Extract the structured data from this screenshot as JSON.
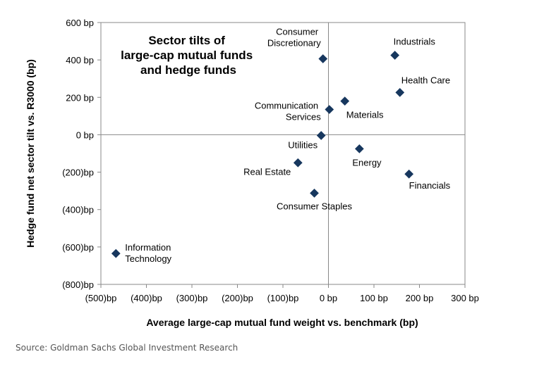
{
  "chart_data": {
    "type": "scatter",
    "title": "Sector tilts of large-cap mutual funds and hedge funds",
    "x_label": "Average large-cap mutual fund weight vs. benchmark (bp)",
    "y_label": "Hedge fund net sector tilt vs. R3000 (bp)",
    "source": "Source: Goldman Sachs Global Investment Research",
    "color": "#17375e",
    "categories": [
      "Information Technology",
      "Consumer Discretionary",
      "Industrials",
      "Health Care",
      "Communication Services",
      "Materials",
      "Utilities",
      "Energy",
      "Real Estate",
      "Financials",
      "Consumer Staples"
    ],
    "x": [
      -467,
      -12,
      146,
      157,
      2,
      36,
      -16,
      68,
      -67,
      177,
      -31
    ],
    "values": [
      -635,
      406,
      425,
      226,
      135,
      180,
      -4,
      -75,
      -150,
      -210,
      -312
    ],
    "xlim": [
      -500,
      300
    ],
    "ylim": [
      -800,
      600
    ],
    "xticks": [
      {
        "value": -500,
        "label": "(500)bp"
      },
      {
        "value": -400,
        "label": "(400)bp"
      },
      {
        "value": -300,
        "label": "(300)bp"
      },
      {
        "value": -200,
        "label": "(200)bp"
      },
      {
        "value": -100,
        "label": "(100)bp"
      },
      {
        "value": 0,
        "label": "0 bp"
      },
      {
        "value": 100,
        "label": "100 bp"
      },
      {
        "value": 200,
        "label": "200 bp"
      },
      {
        "value": 300,
        "label": "300 bp"
      }
    ],
    "yticks": [
      {
        "value": -800,
        "label": "(800)bp"
      },
      {
        "value": -600,
        "label": "(600)bp"
      },
      {
        "value": -400,
        "label": "(400)bp"
      },
      {
        "value": -200,
        "label": "(200)bp"
      },
      {
        "value": 0,
        "label": "0 bp"
      },
      {
        "value": 200,
        "label": "200 bp"
      },
      {
        "value": 400,
        "label": "400 bp"
      },
      {
        "value": 600,
        "label": "600 bp"
      }
    ]
  }
}
